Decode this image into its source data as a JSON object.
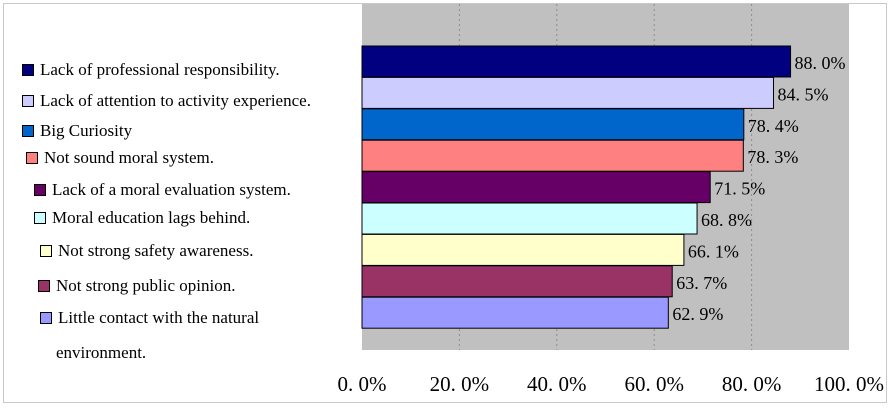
{
  "chart_data": {
    "type": "bar",
    "orientation": "horizontal",
    "xlim": [
      0,
      100
    ],
    "ticks": [
      "0. 0%",
      "20. 0%",
      "40. 0%",
      "60. 0%",
      "80. 0%",
      "100. 0%"
    ],
    "grid": true,
    "plot_background": "#c0c0c0",
    "legend_position": "left",
    "categories": [
      "Lack of professional responsibility.",
      "Lack of attention to activity experience.",
      "Big Curiosity",
      "Not sound moral system.",
      "Lack of a moral evaluation system.",
      "Moral education lags behind.",
      "Not strong safety awareness.",
      "Not strong public opinion.",
      "Little contact with the natural"
    ],
    "legend_continuation": "environment.",
    "values": [
      88.0,
      84.5,
      78.4,
      78.3,
      71.5,
      68.8,
      66.1,
      63.7,
      62.9
    ],
    "value_labels": [
      "88. 0%",
      "84. 5%",
      "78. 4%",
      "78. 3%",
      "71. 5%",
      "68. 8%",
      "66. 1%",
      "63. 7%",
      "62. 9%"
    ],
    "colors": [
      "#000080",
      "#ccccff",
      "#0066cc",
      "#ff8080",
      "#660066",
      "#ccffff",
      "#ffffcc",
      "#993366",
      "#9999ff"
    ]
  }
}
